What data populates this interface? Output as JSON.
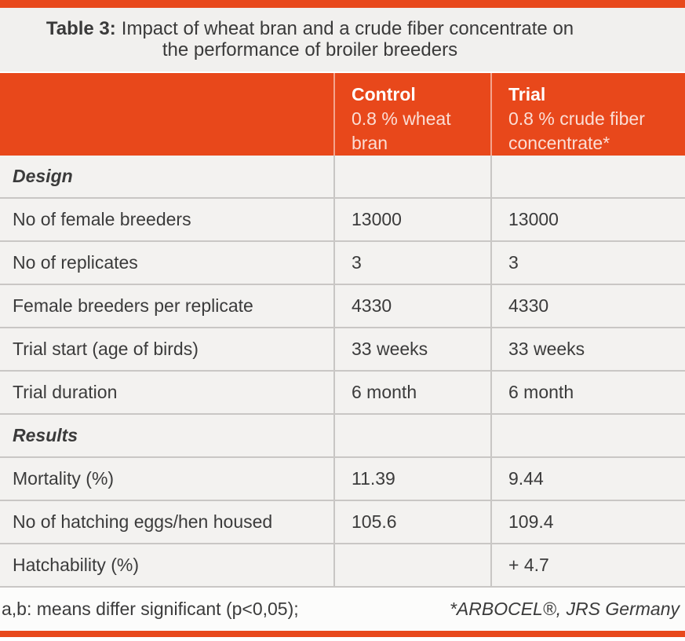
{
  "accent_color": "#E8481B",
  "title": {
    "label": "Table 3:",
    "line1": "Impact of wheat bran and a crude fiber concentrate on",
    "line2": "the performance of broiler breeders"
  },
  "table": {
    "columns": [
      {
        "name": "",
        "subtitle": ""
      },
      {
        "name": "Control",
        "subtitle": "0.8 % wheat bran"
      },
      {
        "name": "Trial",
        "subtitle": "0.8 % crude fiber concentrate*"
      }
    ],
    "rows": [
      {
        "label": "Design",
        "section": true,
        "control": "",
        "trial": ""
      },
      {
        "label": "No of female breeders",
        "section": false,
        "control": "13000",
        "trial": "13000"
      },
      {
        "label": "No of replicates",
        "section": false,
        "control": "3",
        "trial": "3"
      },
      {
        "label": "Female breeders per replicate",
        "section": false,
        "control": "4330",
        "trial": "4330"
      },
      {
        "label": "Trial start (age of birds)",
        "section": false,
        "control": "33 weeks",
        "trial": "33 weeks"
      },
      {
        "label": "Trial duration",
        "section": false,
        "control": "6 month",
        "trial": "6 month"
      },
      {
        "label": "Results",
        "section": true,
        "control": "",
        "trial": ""
      },
      {
        "label": "Mortality (%)",
        "section": false,
        "control": "11.39",
        "trial": "9.44"
      },
      {
        "label": "No of hatching eggs/hen housed",
        "section": false,
        "control": "105.6",
        "trial": "109.4"
      },
      {
        "label": "Hatchability (%)",
        "section": false,
        "control": "",
        "trial": "+ 4.7"
      }
    ]
  },
  "footnotes": {
    "left": "a,b: means differ significant (p<0,05);",
    "right": "*ARBOCEL®, JRS Germany"
  },
  "chart_data": {
    "type": "table",
    "title": "Table 3: Impact of wheat bran and a crude fiber concentrate on the performance of broiler breeders",
    "columns": [
      "",
      "Control 0.8 % wheat bran",
      "Trial 0.8 % crude fiber concentrate*"
    ],
    "rows": [
      [
        "Design",
        "",
        ""
      ],
      [
        "No of female breeders",
        "13000",
        "13000"
      ],
      [
        "No of replicates",
        "3",
        "3"
      ],
      [
        "Female breeders per replicate",
        "4330",
        "4330"
      ],
      [
        "Trial start (age of birds)",
        "33 weeks",
        "33 weeks"
      ],
      [
        "Trial duration",
        "6 month",
        "6 month"
      ],
      [
        "Results",
        "",
        ""
      ],
      [
        "Mortality (%)",
        "11.39",
        "9.44"
      ],
      [
        "No of hatching eggs/hen housed",
        "105.6",
        "109.4"
      ],
      [
        "Hatchability (%)",
        "",
        "+ 4.7"
      ]
    ],
    "footnotes": [
      "a,b: means differ significant (p<0,05);",
      "*ARBOCEL®, JRS Germany"
    ]
  }
}
